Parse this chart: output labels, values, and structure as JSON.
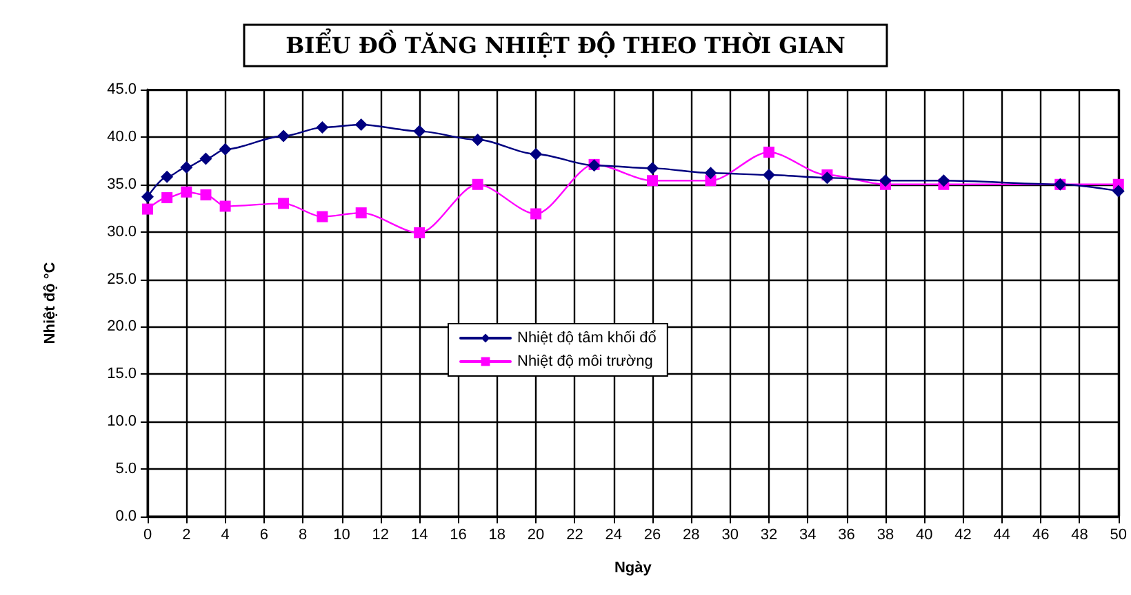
{
  "chart_data": {
    "type": "line",
    "title": "BIỂU ĐỒ TĂNG NHIỆT ĐỘ THEO THỜI GIAN",
    "xlabel": "Ngày",
    "ylabel": "Nhiệt độ °C",
    "x": [
      0,
      1,
      2,
      3,
      4,
      7,
      9,
      11,
      14,
      17,
      20,
      23,
      26,
      29,
      32,
      35,
      38,
      41,
      47,
      50
    ],
    "series": [
      {
        "name": "Nhiệt độ tâm khối đổ",
        "color": "#000080",
        "marker": "diamond",
        "values": [
          33.7,
          35.8,
          36.8,
          37.7,
          38.7,
          40.1,
          41.0,
          41.3,
          40.6,
          39.7,
          38.2,
          37.0,
          36.7,
          36.2,
          36.0,
          35.7,
          35.4,
          35.4,
          35.0,
          34.3
        ]
      },
      {
        "name": "Nhiệt độ môi trường",
        "color": "#ff00ff",
        "marker": "square",
        "values": [
          32.4,
          33.6,
          34.2,
          33.9,
          32.7,
          33.0,
          31.6,
          32.0,
          29.9,
          35.0,
          31.9,
          37.1,
          35.4,
          35.4,
          38.4,
          36.0,
          35.0,
          35.0,
          35.0,
          35.0
        ]
      }
    ],
    "xlim": [
      0,
      50
    ],
    "xticks": [
      0,
      2,
      4,
      6,
      8,
      10,
      12,
      14,
      16,
      18,
      20,
      22,
      24,
      26,
      28,
      30,
      32,
      34,
      36,
      38,
      40,
      42,
      44,
      46,
      48,
      50
    ],
    "ylim": [
      0,
      45
    ],
    "yticks": [
      {
        "value": 0,
        "label": "0.0"
      },
      {
        "value": 5,
        "label": "5.0"
      },
      {
        "value": 10,
        "label": "10.0"
      },
      {
        "value": 15,
        "label": "15.0"
      },
      {
        "value": 20,
        "label": "20.0"
      },
      {
        "value": 25,
        "label": "25.0"
      },
      {
        "value": 30,
        "label": "30.0"
      },
      {
        "value": 35,
        "label": "35.0"
      },
      {
        "value": 40,
        "label": "40.0"
      },
      {
        "value": 45,
        "label": "45.0"
      }
    ],
    "grid": true,
    "legend": "center",
    "line_style": "solid"
  }
}
